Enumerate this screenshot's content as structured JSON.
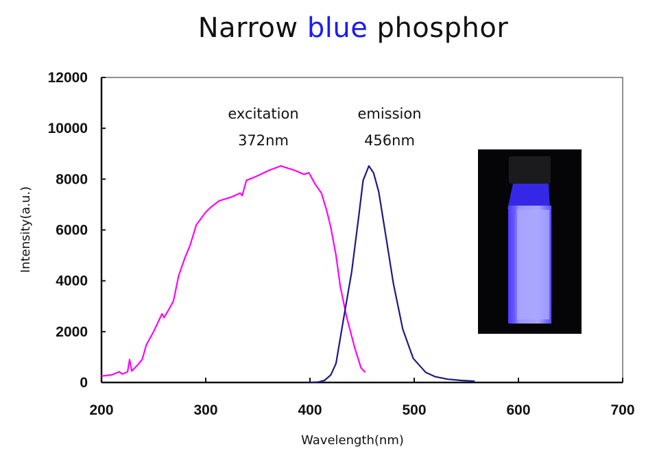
{
  "chart_data": {
    "type": "line",
    "title": {
      "prefix": "Narrow ",
      "highlight": "blue",
      "suffix": " phosphor",
      "highlight_color": "#1a1aff"
    },
    "xlabel": "Wavelength(nm)",
    "ylabel": "Intensity(a.u.)",
    "xlim": [
      200,
      700
    ],
    "ylim": [
      0,
      12000
    ],
    "xticks": [
      200,
      300,
      400,
      500,
      600,
      700
    ],
    "yticks": [
      0,
      2000,
      4000,
      6000,
      8000,
      10000,
      12000
    ],
    "grid": false,
    "series": [
      {
        "name": "excitation",
        "color": "#ff00ff",
        "x": [
          200,
          210,
          217,
          220,
          225,
          227,
          229,
          235,
          239,
          243,
          250,
          258,
          260,
          265,
          269,
          274,
          280,
          285,
          291,
          300,
          305,
          313,
          325,
          333,
          335,
          339,
          348,
          361,
          372,
          385,
          394,
          399,
          405,
          411,
          416,
          420,
          425,
          429,
          435,
          443,
          449,
          453
        ],
        "y": [
          250,
          300,
          420,
          330,
          420,
          900,
          450,
          700,
          900,
          1480,
          2000,
          2700,
          2550,
          2900,
          3200,
          4200,
          4900,
          5400,
          6200,
          6700,
          6900,
          7150,
          7300,
          7450,
          7350,
          7950,
          8100,
          8350,
          8520,
          8350,
          8190,
          8250,
          7800,
          7450,
          6770,
          6100,
          5000,
          3800,
          2600,
          1350,
          570,
          400
        ]
      },
      {
        "name": "emission",
        "color": "#1a1a80",
        "x": [
          400,
          408,
          414,
          420,
          425,
          433,
          440,
          447,
          451,
          456.5,
          461,
          466,
          473,
          480,
          489,
          499,
          511,
          520,
          532,
          545,
          558
        ],
        "y": [
          0,
          20,
          80,
          300,
          750,
          2700,
          4350,
          6600,
          7950,
          8520,
          8250,
          7500,
          5700,
          3900,
          2100,
          950,
          400,
          230,
          130,
          80,
          50
        ]
      }
    ],
    "annotations": [
      {
        "line1": "excitation",
        "line2": "372nm"
      },
      {
        "line1": "emission",
        "line2": "456nm"
      }
    ],
    "inset": "photo of vial with glowing blue phosphor under UV"
  }
}
